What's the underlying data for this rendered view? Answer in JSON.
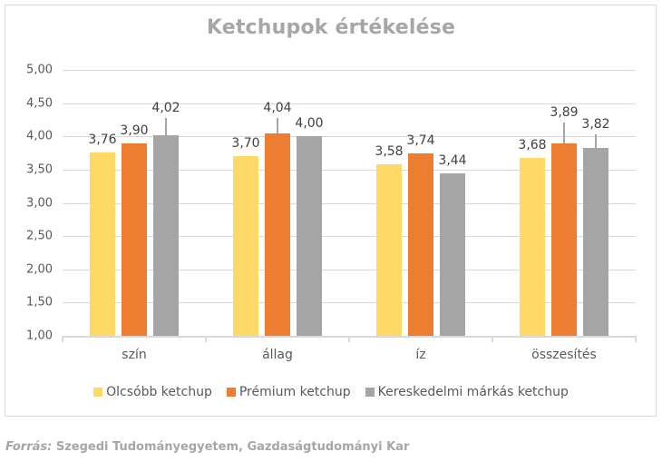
{
  "chart_data": {
    "type": "bar",
    "title": "Ketchupok értékelése",
    "xlabel": "",
    "ylabel": "",
    "ylim": [
      1.0,
      5.0
    ],
    "yticks": [
      "5,00",
      "4,50",
      "4,00",
      "3,50",
      "3,00",
      "2,50",
      "2,00",
      "1,50",
      "1,00"
    ],
    "grid": true,
    "legend_position": "bottom",
    "categories": [
      "szín",
      "állag",
      "íz",
      "összesítés"
    ],
    "series": [
      {
        "name": "Olcsóbb ketchup",
        "color": "#ffd966",
        "values": [
          3.76,
          3.7,
          3.58,
          3.68
        ],
        "labels": [
          "3,76",
          "3,70",
          "3,58",
          "3,68"
        ]
      },
      {
        "name": "Prémium ketchup",
        "color": "#ed7d31",
        "values": [
          3.9,
          4.04,
          3.74,
          3.89
        ],
        "labels": [
          "3,90",
          "4,04",
          "3,74",
          "3,89"
        ]
      },
      {
        "name": "Kereskedelmi márkás ketchup",
        "color": "#a5a5a5",
        "values": [
          4.02,
          4.0,
          3.44,
          3.82
        ],
        "labels": [
          "4,02",
          "4,00",
          "3,44",
          "3,82"
        ]
      }
    ]
  },
  "source": {
    "label": "Forrás:",
    "text": " Szegedi Tudományegyetem, Gazdaságtudományi Kar"
  }
}
